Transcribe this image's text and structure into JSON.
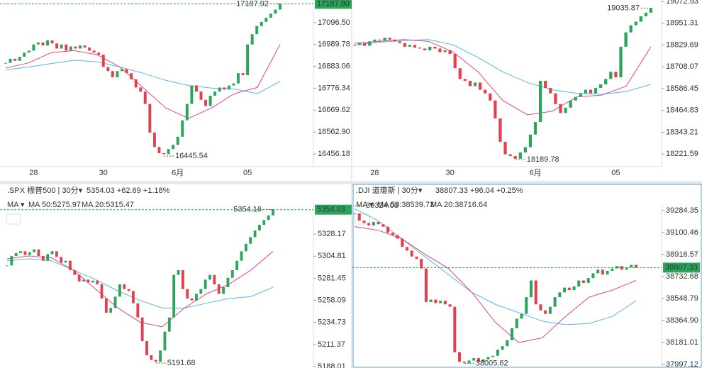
{
  "panels": [
    {
      "ylim": [
        16394.2,
        17206.7
      ],
      "yticks": [
        {
          "value": 17096.5,
          "label": "17096.50"
        },
        {
          "value": 16989.78,
          "label": "16989.78"
        },
        {
          "value": 16883.06,
          "label": "16883.06"
        },
        {
          "value": 16776.34,
          "label": "16776.34"
        },
        {
          "value": 16669.62,
          "label": "16669.62"
        },
        {
          "value": 16562.9,
          "label": "16562.90"
        },
        {
          "value": 16456.18,
          "label": "16456.18"
        }
      ],
      "last": {
        "value": 17187.9,
        "label": "17187.90"
      },
      "high": {
        "value": 17187.92,
        "label": "17187.92"
      },
      "low": {
        "value": 16445.54,
        "label": "16445.54"
      },
      "categories": [
        null,
        null,
        null,
        null,
        null,
        null,
        "28",
        null,
        null,
        null,
        null,
        null,
        null,
        null,
        null,
        null,
        null,
        null,
        null,
        null,
        null,
        "30",
        null,
        null,
        null,
        null,
        null,
        null,
        null,
        null,
        null,
        null,
        null,
        null,
        null,
        null,
        null,
        "6月",
        null,
        null,
        null,
        null,
        null,
        null,
        null,
        null,
        null,
        null,
        null,
        null,
        null,
        null,
        "05",
        null,
        null,
        null,
        null,
        null,
        null,
        null
      ],
      "closes": [
        16900,
        16920,
        16910,
        16930,
        16950,
        16960,
        16990,
        17000,
        16985,
        17010,
        16995,
        16970,
        16990,
        16960,
        16980,
        16970,
        16985,
        16975,
        16960,
        16950,
        16940,
        16880,
        16860,
        16830,
        16860,
        16870,
        16850,
        16820,
        16780,
        16760,
        16700,
        16560,
        16490,
        16460,
        16455,
        16480,
        16500,
        16540,
        16620,
        16700,
        16790,
        16760,
        16720,
        16690,
        16740,
        16760,
        16780,
        16770,
        16790,
        16800,
        16850,
        16840,
        16990,
        17040,
        17080,
        17100,
        17120,
        17140,
        17160,
        17188
      ],
      "ma50": [
        16866,
        16880,
        16897,
        16913,
        16905,
        16880,
        16850,
        16815,
        16790,
        16777,
        16773,
        16750,
        16810
      ],
      "ma20": [
        16875,
        16900,
        16950,
        16960,
        16940,
        16880,
        16780,
        16680,
        16630,
        16680,
        16750,
        16780,
        16990
      ]
    },
    {
      "ylim": [
        18151,
        19080.8
      ],
      "yticks": [
        {
          "value": 19072.93,
          "label": "19072.93"
        },
        {
          "value": 18951.31,
          "label": "18951.31"
        },
        {
          "value": 18829.69,
          "label": "18829.69"
        },
        {
          "value": 18708.07,
          "label": "18708.07"
        },
        {
          "value": 18586.45,
          "label": "18586.45"
        },
        {
          "value": 18464.83,
          "label": "18464.83"
        },
        {
          "value": 18343.21,
          "label": "18343.21"
        },
        {
          "value": 18221.59,
          "label": "18221.59"
        }
      ],
      "high": {
        "value": 19035.87,
        "label": "19035.87"
      },
      "low": {
        "value": 18189.78,
        "label": "18189.78"
      },
      "categories": [
        null,
        null,
        null,
        null,
        "28",
        null,
        null,
        null,
        null,
        null,
        null,
        null,
        null,
        null,
        null,
        null,
        null,
        null,
        null,
        "30",
        null,
        null,
        null,
        null,
        null,
        null,
        null,
        null,
        null,
        null,
        null,
        null,
        null,
        null,
        null,
        null,
        "6月",
        null,
        null,
        null,
        null,
        null,
        null,
        null,
        null,
        null,
        null,
        null,
        null,
        null,
        null,
        null,
        "05",
        null,
        null,
        null,
        null,
        null,
        null,
        null
      ],
      "closes": [
        18830,
        18840,
        18825,
        18850,
        18860,
        18855,
        18870,
        18860,
        18850,
        18840,
        18820,
        18830,
        18815,
        18810,
        18800,
        18820,
        18810,
        18790,
        18800,
        18780,
        18700,
        18640,
        18630,
        18600,
        18620,
        18580,
        18560,
        18520,
        18420,
        18290,
        18220,
        18210,
        18195,
        18230,
        18260,
        18330,
        18400,
        18630,
        18590,
        18560,
        18500,
        18450,
        18480,
        18520,
        18540,
        18560,
        18580,
        18560,
        18590,
        18610,
        18640,
        18680,
        18650,
        18820,
        18900,
        18940,
        18960,
        18990,
        19010,
        19036
      ],
      "ma50": [
        18830,
        18845,
        18855,
        18860,
        18830,
        18760,
        18680,
        18620,
        18580,
        18560,
        18555,
        18570,
        18610
      ],
      "ma20": [
        18840,
        18850,
        18860,
        18850,
        18790,
        18680,
        18520,
        18440,
        18460,
        18540,
        18550,
        18600,
        18820
      ]
    },
    {
      "symbol": ".SPX 標普500 | 30分▾",
      "quote": "5354.03 +62.69 +1.18%",
      "ma_legend": [
        "MA ▾",
        "MA 50:5275.97",
        "MA 20:5315.47"
      ],
      "ylim": [
        5186.5,
        5358.3
      ],
      "yticks": [
        {
          "value": 5328.17,
          "label": "5328.17"
        },
        {
          "value": 5304.81,
          "label": "5304.81"
        },
        {
          "value": 5281.45,
          "label": "5281.45"
        },
        {
          "value": 5258.09,
          "label": "5258.09"
        },
        {
          "value": 5234.73,
          "label": "5234.73"
        },
        {
          "value": 5211.37,
          "label": "5211.37"
        },
        {
          "value": 5188.01,
          "label": "5188.01"
        }
      ],
      "last": {
        "value": 5354.03,
        "label": "5354.03"
      },
      "high": {
        "value": 5354.16,
        "label": "5354.16"
      },
      "low": {
        "value": 5191.68,
        "label": "5191.68"
      },
      "closes": [
        5295,
        5305,
        5308,
        5310,
        5306,
        5309,
        5312,
        5305,
        5300,
        5307,
        5310,
        5304,
        5298,
        5300,
        5290,
        5285,
        5278,
        5280,
        5277,
        5279,
        5275,
        5260,
        5245,
        5250,
        5262,
        5275,
        5270,
        5268,
        5255,
        5240,
        5215,
        5200,
        5195,
        5193,
        5205,
        5225,
        5240,
        5285,
        5290,
        5270,
        5260,
        5258,
        5265,
        5270,
        5280,
        5285,
        5275,
        5265,
        5272,
        5282,
        5290,
        5300,
        5310,
        5318,
        5325,
        5332,
        5338,
        5343,
        5348,
        5354
      ],
      "ma50": [
        5300,
        5302,
        5300,
        5290,
        5280,
        5268,
        5258,
        5250,
        5250,
        5255,
        5260,
        5262,
        5272
      ],
      "ma20": [
        5302,
        5305,
        5303,
        5290,
        5270,
        5250,
        5235,
        5230,
        5250,
        5265,
        5275,
        5290,
        5310
      ]
    },
    {
      "symbol": ".DJI 道瓊斯 | 30分▾",
      "quote": "38807.33 +96.04 +0.25%",
      "ma_legend": [
        "MA ▾",
        "MA 50:38539.73",
        "MA 20:38716.64"
      ],
      "ylim": [
        37967.5,
        39325.9
      ],
      "yticks": [
        {
          "value": 39284.35,
          "label": "39284.35"
        },
        {
          "value": 39100.46,
          "label": "39100.46"
        },
        {
          "value": 38916.57,
          "label": "38916.57"
        },
        {
          "value": 38732.68,
          "label": "38732.68"
        },
        {
          "value": 38548.79,
          "label": "38548.79"
        },
        {
          "value": 38364.9,
          "label": "38364.90"
        },
        {
          "value": 38181.01,
          "label": "38181.01"
        },
        {
          "value": 37997.12,
          "label": "37997.12"
        }
      ],
      "last": {
        "value": 38807.33,
        "label": "38807.33"
      },
      "high": {
        "value": 39324.03,
        "label": "39324.03"
      },
      "low": {
        "value": 38005.62,
        "label": "38005.62"
      },
      "closes": [
        39260,
        39200,
        39180,
        39160,
        39190,
        39170,
        39150,
        39100,
        39080,
        39050,
        38980,
        38950,
        38900,
        38880,
        38800,
        38520,
        38540,
        38510,
        38530,
        38500,
        38480,
        38100,
        38020,
        38010,
        38030,
        38050,
        38020,
        38040,
        38060,
        38070,
        38120,
        38150,
        38200,
        38300,
        38380,
        38420,
        38560,
        38700,
        38500,
        38450,
        38420,
        38480,
        38560,
        38600,
        38640,
        38620,
        38650,
        38700,
        38680,
        38720,
        38760,
        38790,
        38750,
        38780,
        38800,
        38820,
        38790,
        38810,
        38830,
        38807
      ],
      "ma50": [
        39300,
        39200,
        39050,
        38900,
        38750,
        38600,
        38500,
        38430,
        38360,
        38330,
        38340,
        38400,
        38530
      ],
      "ma20": [
        39150,
        39120,
        39050,
        38920,
        38800,
        38600,
        38350,
        38180,
        38220,
        38400,
        38560,
        38620,
        38700
      ]
    }
  ]
}
